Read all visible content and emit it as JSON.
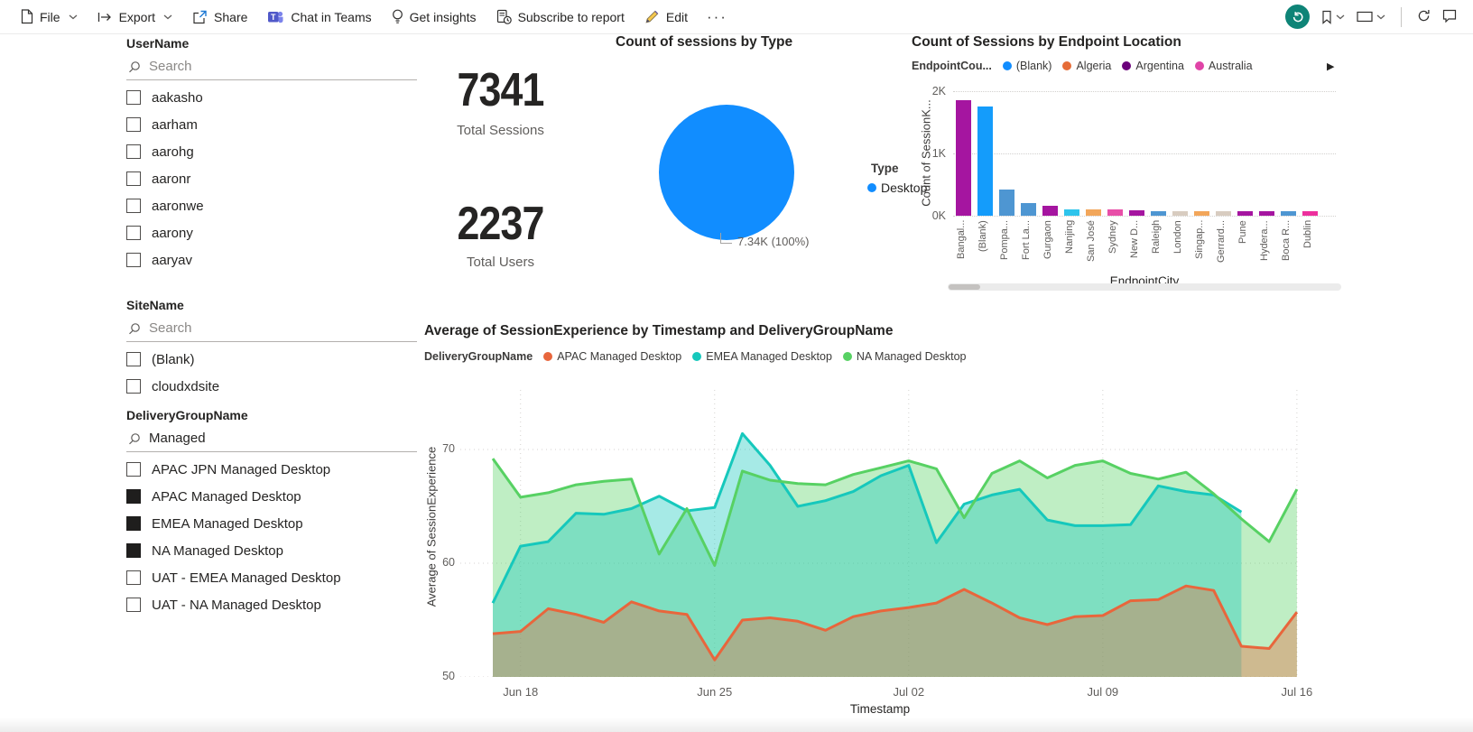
{
  "toolbar": {
    "file": "File",
    "export": "Export",
    "share": "Share",
    "chat_in_teams": "Chat in Teams",
    "get_insights": "Get insights",
    "subscribe": "Subscribe to report",
    "edit": "Edit",
    "more": "···"
  },
  "colors": {
    "accent_teal": "#0E8477",
    "teams_purple": "#5059C9",
    "pencil_yellow": "#F6C84C"
  },
  "slicers": {
    "username": {
      "title": "UserName",
      "search_text": "Search",
      "search_is_value": false,
      "items": [
        {
          "label": "aakasho",
          "checked": false
        },
        {
          "label": "aarham",
          "checked": false
        },
        {
          "label": "aarohg",
          "checked": false
        },
        {
          "label": "aaronr",
          "checked": false
        },
        {
          "label": "aaronwe",
          "checked": false
        },
        {
          "label": "aarony",
          "checked": false
        },
        {
          "label": "aaryav",
          "checked": false
        }
      ]
    },
    "sitename": {
      "title": "SiteName",
      "search_text": "Search",
      "search_is_value": false,
      "items": [
        {
          "label": "(Blank)",
          "checked": false
        },
        {
          "label": "cloudxdsite",
          "checked": false
        }
      ]
    },
    "deliverygroup": {
      "title": "DeliveryGroupName",
      "search_text": "Managed",
      "search_is_value": true,
      "items": [
        {
          "label": "APAC JPN Managed Desktop",
          "checked": false
        },
        {
          "label": "APAC Managed Desktop",
          "checked": true
        },
        {
          "label": "EMEA Managed Desktop",
          "checked": true
        },
        {
          "label": "NA Managed Desktop",
          "checked": true
        },
        {
          "label": "UAT - EMEA Managed Desktop",
          "checked": false
        },
        {
          "label": "UAT - NA Managed Desktop",
          "checked": false
        }
      ]
    }
  },
  "cards": {
    "sessions": {
      "value": "7341",
      "label": "Total Sessions"
    },
    "users": {
      "value": "2237",
      "label": "Total Users"
    }
  },
  "chart_data": [
    {
      "id": "sessions-by-type",
      "type": "pie",
      "title": "Count of sessions by Type",
      "legend_title": "Type",
      "legend_position": "right",
      "slices": [
        {
          "label": "Desktop",
          "value": 7340,
          "display": "7.34K (100%)",
          "color": "#118DFF"
        }
      ]
    },
    {
      "id": "sessions-by-endpoint-location",
      "type": "bar",
      "title": "Count of Sessions by Endpoint Location",
      "legend_title": "EndpointCou...",
      "legend_items": [
        {
          "label": "(Blank)",
          "color": "#118DFF"
        },
        {
          "label": "Algeria",
          "color": "#E66C37"
        },
        {
          "label": "Argentina",
          "color": "#6B007B"
        },
        {
          "label": "Australia",
          "color": "#E044A7"
        }
      ],
      "legend_overflow_arrow": "▶",
      "xlabel": "EndpointCity",
      "ylabel": "Count of SessionK...",
      "yticks": [
        "2K",
        "1K",
        "0K"
      ],
      "ylim": [
        0,
        2000
      ],
      "categories": [
        "Bangal...",
        "(Blank)",
        "Pompa...",
        "Fort La...",
        "Gurgaon",
        "Nanjing",
        "San José",
        "Sydney",
        "New D...",
        "Raleigh",
        "London",
        "Singap...",
        "Gerrard...",
        "Pune",
        "Hydera...",
        "Boca R...",
        "Dublin"
      ],
      "values": [
        1860,
        1750,
        415,
        210,
        160,
        105,
        105,
        95,
        80,
        78,
        68,
        78,
        68,
        78,
        72,
        72,
        66
      ],
      "colors": [
        "#A515A0",
        "#149CFB",
        "#4E96D2",
        "#4E96D2",
        "#A515A0",
        "#2EC4EC",
        "#F2A65A",
        "#E84FA8",
        "#A515A0",
        "#4E96D2",
        "#D8CCC0",
        "#F2A65A",
        "#D8CCC0",
        "#A515A0",
        "#A515A0",
        "#4E96D2",
        "#ED2F9D"
      ],
      "grid": true,
      "has_scrollbar": true
    },
    {
      "id": "session-experience-by-timestamp",
      "type": "area",
      "title": "Average of SessionExperience by Timestamp and DeliveryGroupName",
      "legend_title": "DeliveryGroupName",
      "xlabel": "Timestamp",
      "ylabel": "Average of SessionExperience",
      "ylim": [
        50,
        70
      ],
      "yticks": [
        "70",
        "60",
        "50"
      ],
      "xticks": [
        "Jun 18",
        "Jun 25",
        "Jul 02",
        "Jul 09",
        "Jul 16"
      ],
      "xtick_positions": [
        1,
        8,
        15,
        22,
        29
      ],
      "x_start": "Jun 17",
      "x_count": 30,
      "grid": true,
      "series": [
        {
          "name": "APAC Managed Desktop",
          "color": "#E8663C",
          "values": [
            53.8,
            54.0,
            56.0,
            55.5,
            54.8,
            56.6,
            55.8,
            55.5,
            51.5,
            55.0,
            55.2,
            54.9,
            54.1,
            55.3,
            55.8,
            56.1,
            56.5,
            57.7,
            56.5,
            55.2,
            54.6,
            55.3,
            55.4,
            56.7,
            56.8,
            58.0,
            57.6,
            52.7,
            52.5,
            55.7
          ]
        },
        {
          "name": "EMEA Managed Desktop",
          "color": "#16C8BC",
          "values": [
            56.5,
            61.5,
            61.9,
            64.4,
            64.3,
            64.8,
            65.9,
            64.6,
            64.9,
            71.4,
            68.6,
            65.0,
            65.5,
            66.3,
            67.7,
            68.6,
            61.8,
            65.2,
            66.0,
            66.5,
            63.8,
            63.3,
            63.3,
            63.4,
            66.8,
            66.3,
            66.0,
            64.5,
            null,
            null
          ]
        },
        {
          "name": "NA Managed Desktop",
          "color": "#57D163",
          "values": [
            69.2,
            65.8,
            66.2,
            66.9,
            67.2,
            67.4,
            60.8,
            64.8,
            59.8,
            68.1,
            67.3,
            67.0,
            66.9,
            67.8,
            68.4,
            69.0,
            68.3,
            64.0,
            67.9,
            69.0,
            67.5,
            68.6,
            69.0,
            67.9,
            67.4,
            68.0,
            66.1,
            63.9,
            61.9,
            66.5
          ]
        }
      ]
    }
  ]
}
